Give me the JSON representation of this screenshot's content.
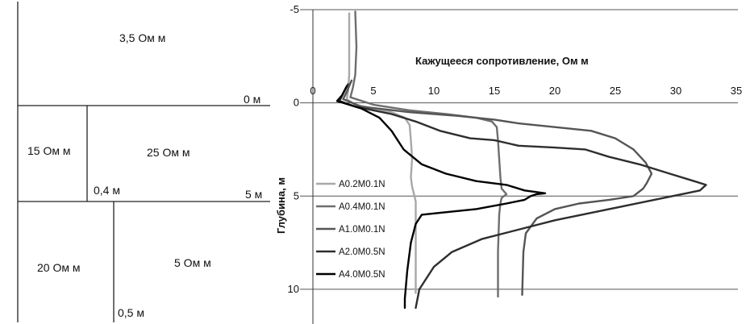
{
  "model": {
    "labels": {
      "top_layer": "3,5 Ом м",
      "left_mid": "15 Ом м",
      "right_mid": "25 Ом м",
      "left_bottom": "20 Ом м",
      "right_bottom": "5 Ом м",
      "depth_0": "0 м",
      "depth_5": "5 м",
      "offset_mid": "0,4 м",
      "offset_bottom": "0,5 м"
    }
  },
  "chart_data": {
    "type": "line",
    "title": "Кажущееся сопротивление, Ом  м",
    "xlabel": "Кажущееся сопротивление, Ом  м",
    "ylabel": "Глубина, м",
    "xlim": [
      0,
      35
    ],
    "ylim": [
      -5,
      11
    ],
    "y_reversed": true,
    "x_ticks": [
      "0",
      "5",
      "10",
      "15",
      "20",
      "25",
      "30",
      "35"
    ],
    "y_ticks": [
      "-5",
      "0",
      "5",
      "10"
    ],
    "grid": "horizontal",
    "legend_position": "left",
    "series": [
      {
        "name": "A0.2M0.1N",
        "color": "#a8a8a8",
        "points": [
          [
            3.0,
            -4.8
          ],
          [
            3.0,
            -3.0
          ],
          [
            3.0,
            -1.5
          ],
          [
            2.9,
            -0.6
          ],
          [
            2.8,
            -0.2
          ],
          [
            3.5,
            0.1
          ],
          [
            5.0,
            0.3
          ],
          [
            6.5,
            0.5
          ],
          [
            7.6,
            0.8
          ],
          [
            8.0,
            1.2
          ],
          [
            8.1,
            2.0
          ],
          [
            8.2,
            3.0
          ],
          [
            8.1,
            4.0
          ],
          [
            8.2,
            4.5
          ],
          [
            8.4,
            5.0
          ],
          [
            8.5,
            5.3
          ],
          [
            8.5,
            6.0
          ],
          [
            8.5,
            8.0
          ],
          [
            8.5,
            10.2
          ]
        ]
      },
      {
        "name": "A0.4M0.1N",
        "color": "#6e6e6e",
        "points": [
          [
            3.5,
            -4.9
          ],
          [
            3.6,
            -3.0
          ],
          [
            3.5,
            -1.5
          ],
          [
            3.3,
            -0.8
          ],
          [
            3.1,
            -0.3
          ],
          [
            5.0,
            0.1
          ],
          [
            8.0,
            0.4
          ],
          [
            11.0,
            0.6
          ],
          [
            13.5,
            0.8
          ],
          [
            14.8,
            1.0
          ],
          [
            15.2,
            1.3
          ],
          [
            15.3,
            2.0
          ],
          [
            15.4,
            3.0
          ],
          [
            15.5,
            4.0
          ],
          [
            15.6,
            4.6
          ],
          [
            16.0,
            4.9
          ],
          [
            15.6,
            5.1
          ],
          [
            15.5,
            5.4
          ],
          [
            15.4,
            6.0
          ],
          [
            15.3,
            8.0
          ],
          [
            15.3,
            10.4
          ]
        ]
      },
      {
        "name": "A1.0M0.1N",
        "color": "#555555",
        "points": [
          [
            3.2,
            -1.2
          ],
          [
            2.8,
            -0.6
          ],
          [
            2.5,
            -0.2
          ],
          [
            4.0,
            0.2
          ],
          [
            8.0,
            0.5
          ],
          [
            12.0,
            0.7
          ],
          [
            15.0,
            0.9
          ],
          [
            17.0,
            1.1
          ],
          [
            20.0,
            1.3
          ],
          [
            23.0,
            1.5
          ],
          [
            25.0,
            1.9
          ],
          [
            26.5,
            2.5
          ],
          [
            27.5,
            3.2
          ],
          [
            28.0,
            3.8
          ],
          [
            27.6,
            4.3
          ],
          [
            27.3,
            4.6
          ],
          [
            26.5,
            5.0
          ],
          [
            24.5,
            5.2
          ],
          [
            22.0,
            5.4
          ],
          [
            20.0,
            5.7
          ],
          [
            18.5,
            6.2
          ],
          [
            17.6,
            7.0
          ],
          [
            17.4,
            8.0
          ],
          [
            17.3,
            10.3
          ]
        ]
      },
      {
        "name": "A2.0M0.5N",
        "color": "#2e2e2e",
        "points": [
          [
            2.9,
            -1.0
          ],
          [
            2.5,
            -0.5
          ],
          [
            2.2,
            -0.1
          ],
          [
            3.5,
            0.2
          ],
          [
            6.5,
            0.6
          ],
          [
            8.5,
            1.0
          ],
          [
            10.5,
            1.5
          ],
          [
            13.0,
            1.9
          ],
          [
            15.0,
            2.0
          ],
          [
            17.0,
            2.3
          ],
          [
            20.0,
            2.4
          ],
          [
            22.5,
            2.5
          ],
          [
            24.5,
            2.9
          ],
          [
            27.0,
            3.3
          ],
          [
            29.5,
            3.8
          ],
          [
            31.5,
            4.2
          ],
          [
            32.5,
            4.4
          ],
          [
            32.0,
            4.7
          ],
          [
            29.0,
            5.1
          ],
          [
            26.0,
            5.5
          ],
          [
            23.0,
            5.9
          ],
          [
            20.0,
            6.3
          ],
          [
            17.0,
            6.8
          ],
          [
            14.0,
            7.3
          ],
          [
            11.5,
            8.0
          ],
          [
            10.0,
            8.8
          ],
          [
            8.8,
            10.0
          ],
          [
            8.5,
            11.0
          ]
        ]
      },
      {
        "name": "A4.0M0.5N",
        "color": "#000000",
        "points": [
          [
            2.8,
            -0.9
          ],
          [
            2.4,
            -0.4
          ],
          [
            2.0,
            -0.1
          ],
          [
            4.0,
            0.3
          ],
          [
            5.5,
            0.8
          ],
          [
            6.5,
            1.5
          ],
          [
            7.5,
            2.5
          ],
          [
            9.0,
            3.3
          ],
          [
            11.0,
            3.8
          ],
          [
            13.5,
            4.2
          ],
          [
            16.0,
            4.4
          ],
          [
            17.5,
            4.7
          ],
          [
            18.6,
            4.8
          ],
          [
            19.2,
            4.85
          ],
          [
            18.5,
            4.9
          ],
          [
            18.0,
            5.0
          ],
          [
            17.5,
            5.2
          ],
          [
            16.0,
            5.4
          ],
          [
            13.5,
            5.7
          ],
          [
            10.5,
            5.9
          ],
          [
            9.0,
            6.0
          ],
          [
            8.5,
            6.5
          ],
          [
            8.1,
            7.5
          ],
          [
            7.8,
            9.0
          ],
          [
            7.6,
            10.5
          ],
          [
            7.6,
            11.0
          ]
        ]
      }
    ]
  }
}
